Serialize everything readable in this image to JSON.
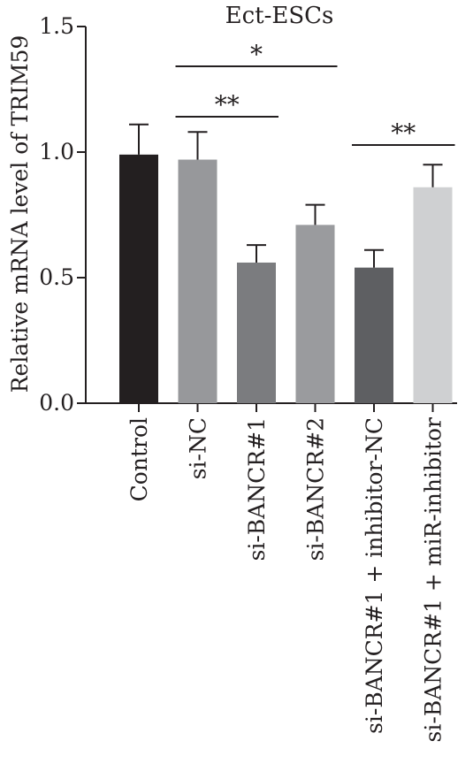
{
  "chart_data": {
    "type": "bar",
    "title": "Ect-ESCs",
    "xlabel": "",
    "ylabel": "Relative mRNA level of TRIM59",
    "ylim": [
      0,
      1.5
    ],
    "yticks": [
      "0.0",
      "0.5",
      "1.0",
      "1.5"
    ],
    "ytick_values": [
      0,
      0.5,
      1.0,
      1.5
    ],
    "categories": [
      "Control",
      "si-NC",
      "si-BANCR#1",
      "si-BANCR#2",
      "si-BANCR#1 + inhibitor-NC",
      "si-BANCR#1 + miR-inhibitor"
    ],
    "values": [
      0.99,
      0.97,
      0.56,
      0.71,
      0.54,
      0.86
    ],
    "errors": [
      0.12,
      0.11,
      0.07,
      0.08,
      0.07,
      0.09
    ],
    "colors": [
      "#231f20",
      "#97989b",
      "#7b7c7f",
      "#9a9b9e",
      "#5e5f62",
      "#cfd0d2"
    ],
    "significance": [
      {
        "from": 1,
        "to": 3,
        "label": "*"
      },
      {
        "from": 1,
        "to": 2,
        "label": "**"
      },
      {
        "from": 4,
        "to": 5,
        "label": "**"
      }
    ],
    "grid": false,
    "legend": "none"
  }
}
